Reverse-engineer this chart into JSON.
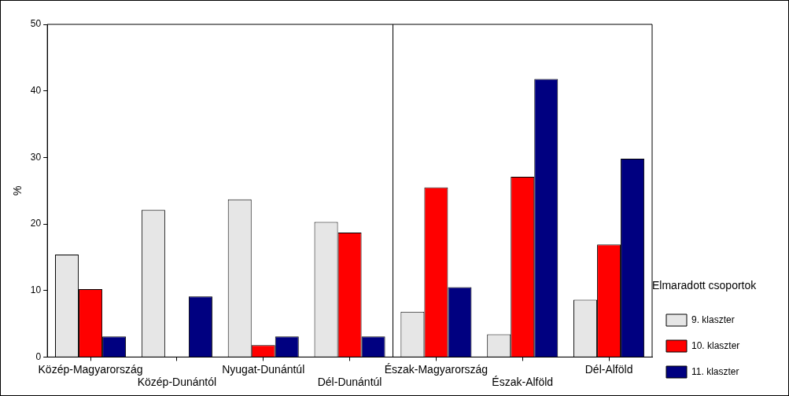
{
  "chart_data": {
    "type": "bar",
    "ylabel": "%",
    "legend_title": "Elmaradott csoportok",
    "legend": "right",
    "grid": false,
    "categories": [
      "Közép-Magyarország",
      "Közép-Dunántól",
      "Nyugat-Dunántúl",
      "Dél-Dunántúl",
      "Észak-Magyarország",
      "Észak-Alföld",
      "Dél-Alföld"
    ],
    "series": [
      {
        "name": "9. klaszter",
        "color": "#e6e6e6",
        "values": [
          15.4,
          22.1,
          23.7,
          20.3,
          6.8,
          3.4,
          8.6
        ]
      },
      {
        "name": "10. klaszter",
        "color": "#ff0000",
        "values": [
          10.2,
          0,
          1.8,
          18.7,
          25.5,
          27.1,
          16.9
        ]
      },
      {
        "name": "11. klaszter",
        "color": "#000080",
        "values": [
          3.1,
          9.1,
          3.1,
          3.1,
          10.5,
          41.8,
          29.8
        ]
      }
    ],
    "ylim": [
      0,
      50
    ],
    "yticks": [
      0,
      10,
      20,
      30,
      40,
      50
    ]
  }
}
